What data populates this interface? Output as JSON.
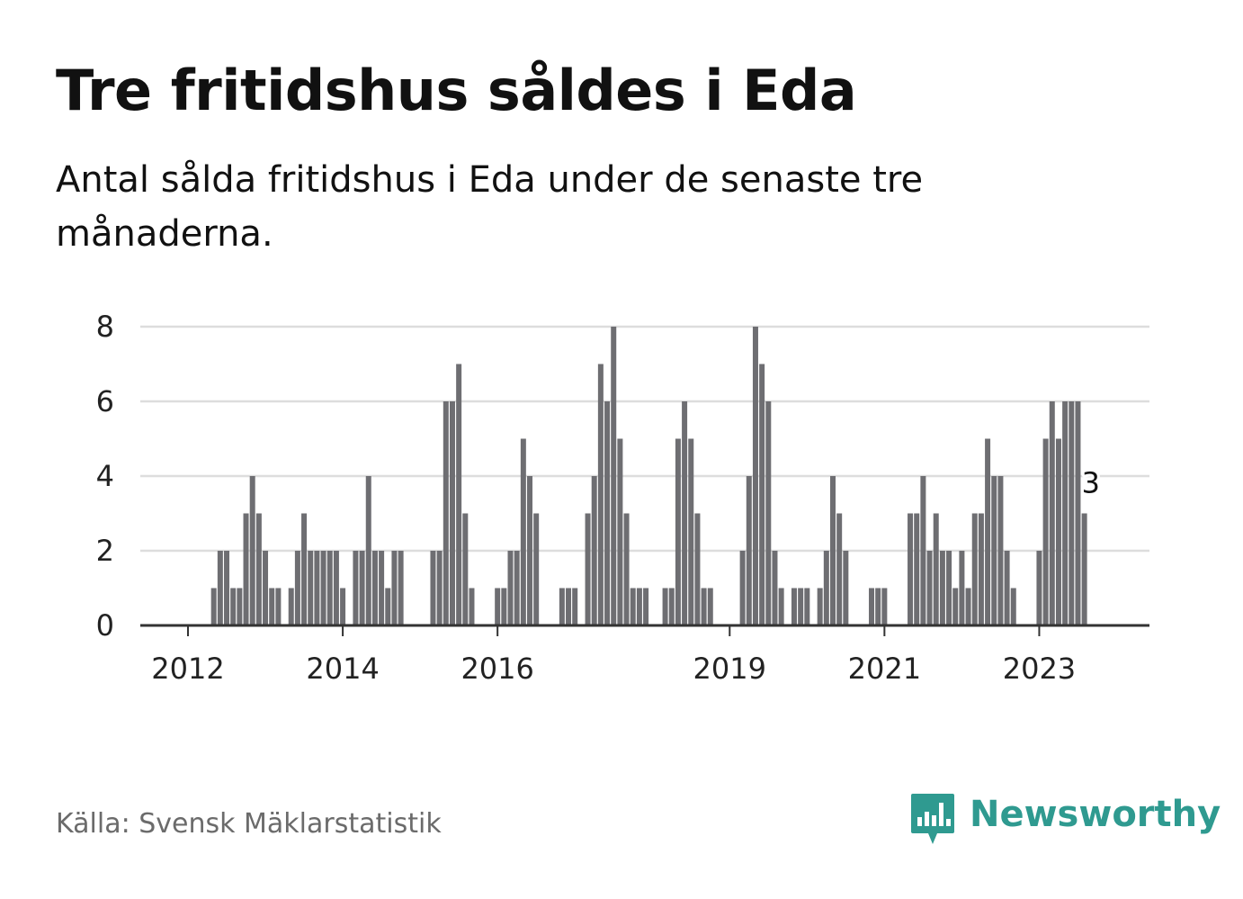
{
  "header": {
    "title": "Tre fritidshus såldes i Eda",
    "subtitle": "Antal sålda fritidshus i Eda under de senaste tre månaderna."
  },
  "footer": {
    "source": "Källa: Svensk Mäklarstatistik",
    "brand": "Newsworthy",
    "brand_icon": "bar-chart-speech-bubble-icon"
  },
  "colors": {
    "bar": "#6e6e72",
    "highlight": "#14a39a",
    "grid": "#dddddd",
    "axis": "#333333",
    "brand": "#2f9a90"
  },
  "chart_data": {
    "type": "bar",
    "title": "Tre fritidshus såldes i Eda",
    "subtitle": "Antal sålda fritidshus i Eda under de senaste tre månaderna.",
    "xlabel": "",
    "ylabel": "",
    "ylim": [
      0,
      8
    ],
    "yticks": [
      "0",
      "2",
      "4",
      "6",
      "8"
    ],
    "xticks": [
      {
        "label": "2012",
        "index": 0
      },
      {
        "label": "2014",
        "index": 24
      },
      {
        "label": "2016",
        "index": 48
      },
      {
        "label": "2019",
        "index": 84
      },
      {
        "label": "2021",
        "index": 108
      },
      {
        "label": "2023",
        "index": 132
      }
    ],
    "grid": true,
    "values": [
      0,
      0,
      0,
      0,
      1,
      2,
      2,
      1,
      1,
      3,
      4,
      3,
      2,
      1,
      1,
      0,
      1,
      2,
      3,
      2,
      2,
      2,
      2,
      2,
      1,
      0,
      2,
      2,
      4,
      2,
      2,
      1,
      2,
      2,
      0,
      0,
      0,
      0,
      2,
      2,
      6,
      6,
      7,
      3,
      1,
      0,
      0,
      0,
      1,
      1,
      2,
      2,
      5,
      4,
      3,
      0,
      0,
      0,
      1,
      1,
      1,
      0,
      3,
      4,
      7,
      6,
      8,
      5,
      3,
      1,
      1,
      1,
      0,
      0,
      1,
      1,
      5,
      6,
      5,
      3,
      1,
      1,
      0,
      0,
      0,
      0,
      2,
      4,
      8,
      7,
      6,
      2,
      1,
      0,
      1,
      1,
      1,
      0,
      1,
      2,
      4,
      3,
      2,
      0,
      0,
      0,
      1,
      1,
      1,
      0,
      0,
      0,
      3,
      3,
      4,
      2,
      3,
      2,
      2,
      1,
      2,
      1,
      3,
      3,
      5,
      4,
      4,
      2,
      1,
      0,
      0,
      0,
      2,
      5,
      6,
      5,
      6,
      6,
      6,
      3
    ],
    "highlight": {
      "index": 140,
      "value": 3,
      "label": "3"
    }
  }
}
